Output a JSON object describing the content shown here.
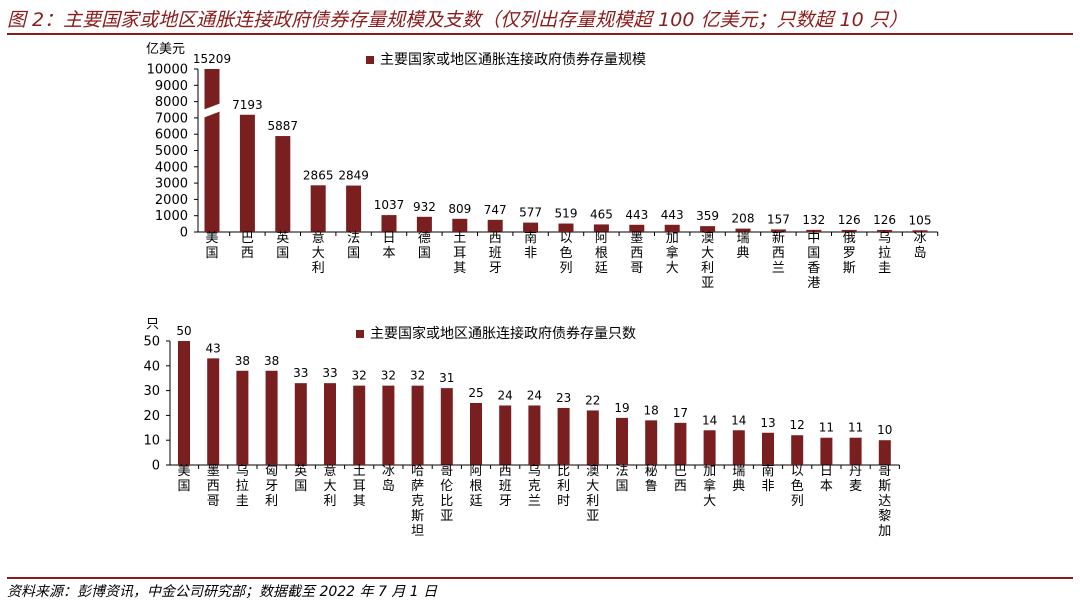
{
  "title": "图 2：主要国家或地区通胀连接政府债券存量规模及支数（仅列出存量规模超 100 亿美元；只数超 10 只）",
  "source": "资料来源：彭博资讯，中金公司研究部；数据截至 2022 年 7 月 1 日",
  "colors": {
    "bar": "#7a1f1f",
    "accent": "#8b1c1c"
  },
  "chart_data": [
    {
      "type": "bar",
      "unit_label": "亿美元",
      "legend": "主要国家或地区通胀连接政府债券存量规模",
      "legend_position": "top-center",
      "ylim": [
        0,
        10000
      ],
      "yticks": [
        0,
        1000,
        2000,
        3000,
        4000,
        5000,
        6000,
        7000,
        8000,
        9000,
        10000
      ],
      "axis_break": true,
      "categories": [
        "美国",
        "巴西",
        "英国",
        "意大利",
        "法国",
        "日本",
        "德国",
        "土耳其",
        "西班牙",
        "南非",
        "以色列",
        "阿根廷",
        "墨西哥",
        "加拿大",
        "澳大利亚",
        "瑞典",
        "新西兰",
        "中国香港",
        "俄罗斯",
        "乌拉圭",
        "冰岛"
      ],
      "values": [
        15209,
        7193,
        5887,
        2865,
        2849,
        1037,
        932,
        809,
        747,
        577,
        519,
        465,
        443,
        443,
        359,
        208,
        157,
        132,
        126,
        126,
        105
      ]
    },
    {
      "type": "bar",
      "unit_label": "只",
      "legend": "主要国家或地区通胀连接政府债券存量只数",
      "legend_position": "top-center",
      "ylim": [
        0,
        50
      ],
      "yticks": [
        0,
        10,
        20,
        30,
        40,
        50
      ],
      "categories": [
        "美国",
        "墨西哥",
        "乌拉圭",
        "匈牙利",
        "英国",
        "意大利",
        "土耳其",
        "冰岛",
        "哈萨克斯坦",
        "哥伦比亚",
        "阿根廷",
        "西班牙",
        "乌克兰",
        "比利时",
        "澳大利亚",
        "法国",
        "秘鲁",
        "巴西",
        "加拿大",
        "瑞典",
        "南非",
        "以色列",
        "日本",
        "丹麦",
        "哥斯达黎加"
      ],
      "values": [
        50,
        43,
        38,
        38,
        33,
        33,
        32,
        32,
        32,
        31,
        25,
        24,
        24,
        23,
        22,
        19,
        18,
        17,
        14,
        14,
        13,
        12,
        11,
        11,
        10
      ]
    }
  ]
}
